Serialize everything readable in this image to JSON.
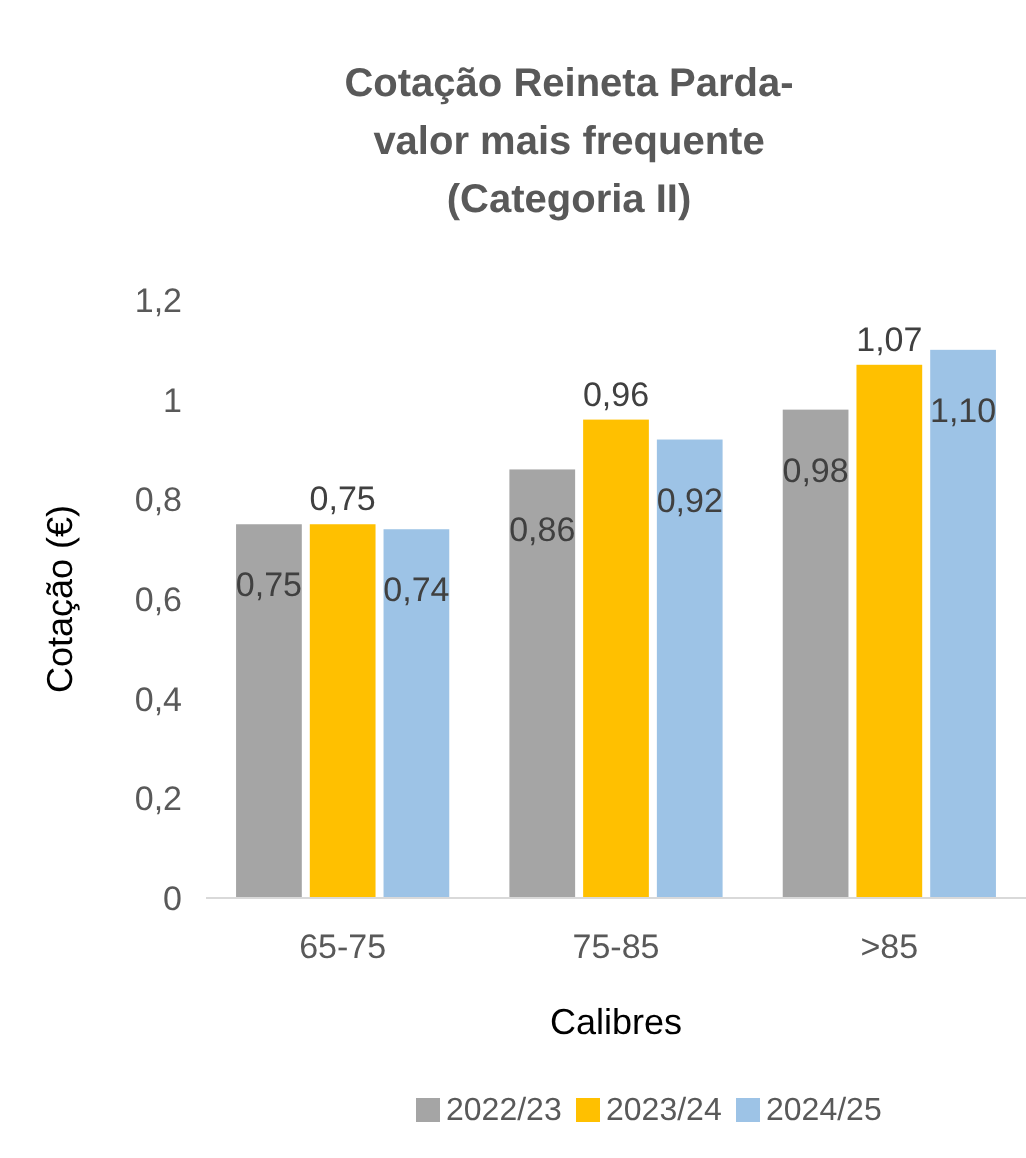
{
  "chart_data": {
    "type": "bar",
    "title": "Cotação Reineta Parda-valor mais frequente (Categoria II)",
    "xlabel": "Calibres",
    "ylabel": "Cotação (€)",
    "categories": [
      "65-75",
      "75-85",
      ">85"
    ],
    "series": [
      {
        "name": "2022/23",
        "color": "#a5a5a5",
        "values": [
          0.75,
          0.86,
          0.98
        ],
        "value_labels": [
          "0,75",
          "0,86",
          "0,98"
        ]
      },
      {
        "name": "2023/24",
        "color": "#ffc000",
        "values": [
          0.75,
          0.96,
          1.07
        ],
        "value_labels": [
          "0,75",
          "0,96",
          "1,07"
        ]
      },
      {
        "name": "2024/25",
        "color": "#9dc3e6",
        "values": [
          0.74,
          0.92,
          1.1
        ],
        "value_labels": [
          "0,74",
          "0,92",
          "1,10"
        ]
      }
    ],
    "ylim": [
      0,
      1.2
    ],
    "yticks": [
      {
        "value": 0,
        "label": "0"
      },
      {
        "value": 0.2,
        "label": "0,2"
      },
      {
        "value": 0.4,
        "label": "0,4"
      },
      {
        "value": 0.6,
        "label": "0,6"
      },
      {
        "value": 0.8,
        "label": "0,8"
      },
      {
        "value": 1,
        "label": "1"
      },
      {
        "value": 1.2,
        "label": "1,2"
      }
    ],
    "grid": false,
    "legend": "bottom"
  }
}
